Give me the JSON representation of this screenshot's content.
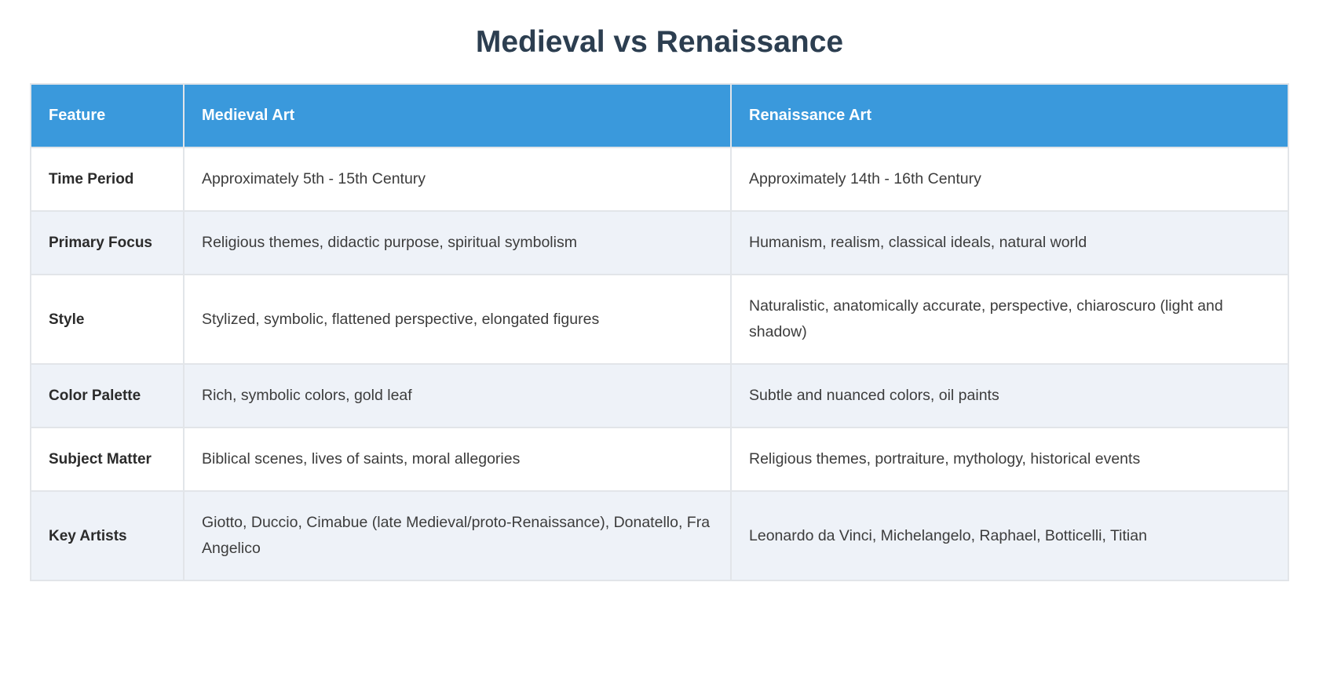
{
  "page": {
    "title": "Medieval vs Renaissance"
  },
  "table": {
    "columns": [
      "Feature",
      "Medieval Art",
      "Renaissance Art"
    ],
    "rows": [
      {
        "feature": "Time Period",
        "medieval": "Approximately 5th - 15th Century",
        "renaissance": "Approximately 14th - 16th Century"
      },
      {
        "feature": "Primary Focus",
        "medieval": "Religious themes, didactic purpose, spiritual symbolism",
        "renaissance": "Humanism, realism, classical ideals, natural world"
      },
      {
        "feature": "Style",
        "medieval": "Stylized, symbolic, flattened perspective, elongated figures",
        "renaissance": "Naturalistic, anatomically accurate, perspective, chiaroscuro (light and shadow)"
      },
      {
        "feature": "Color Palette",
        "medieval": "Rich, symbolic colors, gold leaf",
        "renaissance": "Subtle and nuanced colors, oil paints"
      },
      {
        "feature": "Subject Matter",
        "medieval": "Biblical scenes, lives of saints, moral allegories",
        "renaissance": "Religious themes, portraiture, mythology, historical events"
      },
      {
        "feature": "Key Artists",
        "medieval": "Giotto, Duccio, Cimabue (late Medieval/proto-Renaissance), Donatello, Fra Angelico",
        "renaissance": "Leonardo da Vinci, Michelangelo, Raphael, Botticelli, Titian"
      }
    ],
    "colors": {
      "header_bg": "#3a99dc",
      "header_text": "#ffffff",
      "row_bg": "#ffffff",
      "row_alt_bg": "#eef2f8",
      "border": "#e2e5e9",
      "title_text": "#2c3e50",
      "body_text": "#3c3c3c"
    }
  }
}
